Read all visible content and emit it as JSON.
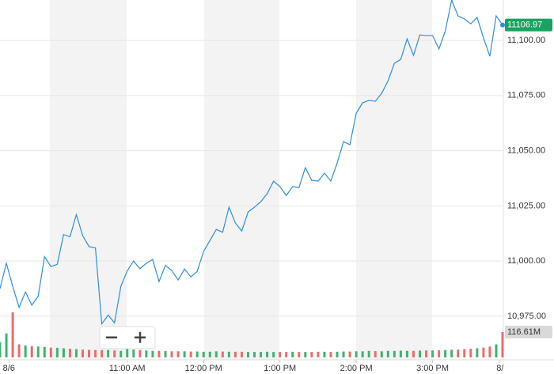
{
  "chart_data": {
    "type": "line",
    "x": [
      0,
      5,
      10,
      15,
      20,
      25,
      30,
      35,
      40,
      45,
      50,
      55,
      60,
      65,
      70,
      75,
      80,
      85,
      90,
      95,
      100,
      105,
      110,
      115,
      120,
      125,
      130,
      135,
      140,
      145,
      150,
      155,
      160,
      165,
      170,
      175,
      180,
      185,
      190,
      195,
      200,
      205,
      210,
      215,
      220,
      225,
      230,
      235,
      240,
      245,
      250,
      255,
      260,
      265,
      270,
      275,
      280,
      285,
      290,
      295,
      300,
      305,
      310,
      315,
      320,
      325,
      330,
      335,
      340,
      345,
      350,
      355,
      360,
      365,
      370,
      375,
      380,
      385,
      390,
      395
    ],
    "series": [
      {
        "color": "#2a8fe0",
        "values": [
          10987.5,
          10999,
          10988.5,
          10979,
          10986,
          10980,
          10984,
          11002,
          10997.5,
          10998.5,
          11012,
          11011,
          11021,
          11011.5,
          11006.5,
          11006,
          10971.5,
          10975.5,
          10972,
          10988.5,
          10995.5,
          11000,
          10996.5,
          10999,
          11000.7,
          10990.7,
          10998,
          10995.7,
          10991.4,
          10996.4,
          10992.8,
          10995.3,
          11004.3,
          11009.3,
          11014.3,
          11013,
          11024.4,
          11017.2,
          11013.6,
          11022.2,
          11024.4,
          11026.9,
          11030.5,
          11036.2,
          11033.7,
          11029.7,
          11033.7,
          11033.3,
          11042.3,
          11036.6,
          11036.2,
          11039.8,
          11036.2,
          11044.4,
          11054.1,
          11052.7,
          11067,
          11071.7,
          11072.8,
          11072.4,
          11076,
          11081.7,
          11089.6,
          11091.4,
          11100.7,
          11093.2,
          11102.5,
          11102.2,
          11102.2,
          11096.1,
          11104.3,
          11118.3,
          11111.1,
          11109.7,
          11107.5,
          11110.4,
          11101.1,
          11092.8,
          11111.1,
          11106.97
        ]
      }
    ],
    "volume": {
      "up_color": "#3cb371",
      "down_color": "#f06a6a",
      "values": [
        70,
        110,
        207,
        60,
        55,
        52,
        50,
        48,
        45,
        44,
        42,
        40,
        38,
        36,
        35,
        34,
        33,
        34,
        32,
        30,
        60,
        36,
        34,
        32,
        30,
        30,
        29,
        28,
        28,
        28,
        27,
        27,
        26,
        26,
        28,
        27,
        26,
        26,
        26,
        25,
        25,
        25,
        26,
        25,
        25,
        25,
        26,
        25,
        25,
        25,
        26,
        26,
        25,
        26,
        27,
        27,
        28,
        28,
        30,
        29,
        28,
        30,
        30,
        31,
        30,
        30,
        31,
        32,
        32,
        33,
        34,
        35,
        36,
        38,
        40,
        42,
        45,
        50,
        60,
        116.61
      ],
      "value_labels": [
        null,
        null,
        null,
        null,
        null,
        null,
        null,
        null,
        null,
        null,
        null,
        null,
        null,
        null,
        null,
        null,
        null,
        null,
        null,
        null,
        null,
        null,
        null,
        null,
        null,
        null,
        null,
        null,
        null,
        null,
        null,
        null,
        null,
        null,
        null,
        null,
        null,
        null,
        null,
        null,
        null,
        null,
        null,
        null,
        null,
        null,
        null,
        null,
        null,
        null,
        null,
        null,
        null,
        null,
        null,
        null,
        null,
        null,
        null,
        null,
        null,
        null,
        null,
        null,
        null,
        null,
        null,
        null,
        null,
        null,
        null,
        null,
        null,
        null,
        null,
        null,
        null,
        null,
        null,
        "116.61M"
      ],
      "ylim": [
        0,
        240
      ]
    },
    "xlim": [
      0,
      395
    ],
    "xticks": [
      {
        "value": 7,
        "label": "8/6"
      },
      {
        "value": 100,
        "label": "11:00 AM"
      },
      {
        "value": 160,
        "label": "12:00 PM"
      },
      {
        "value": 220,
        "label": "1:00 PM"
      },
      {
        "value": 280,
        "label": "2:00 PM"
      },
      {
        "value": 340,
        "label": "3:00 PM"
      },
      {
        "value": 393,
        "label": "8/"
      }
    ],
    "ylim": [
      10965.06,
      11118.3
    ],
    "yticks": [
      {
        "value": 10975,
        "label": "10,975.00"
      },
      {
        "value": 11000,
        "label": "11,000.00"
      },
      {
        "value": 11025,
        "label": "11,025.00"
      },
      {
        "value": 11050,
        "label": "11,050.00"
      },
      {
        "value": 11075,
        "label": "11,075.00"
      },
      {
        "value": 11100,
        "label": "11,100.00"
      }
    ],
    "grid": true
  }
}
